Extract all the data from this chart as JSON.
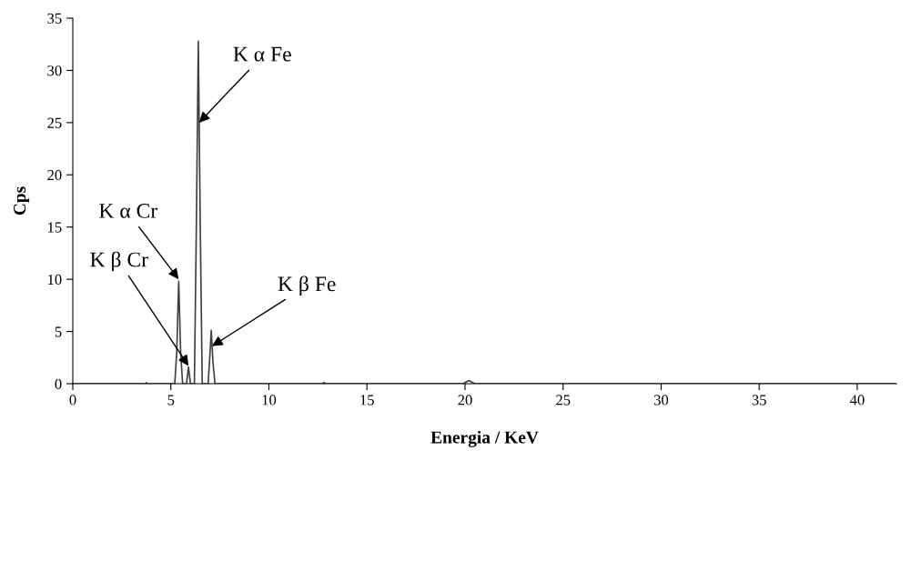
{
  "chart_data": {
    "type": "line",
    "xlabel": "Energia / KeV",
    "ylabel": "Cps",
    "x": [
      0,
      3.7,
      3.75,
      3.8,
      5.2,
      5.3,
      5.4,
      5.5,
      5.6,
      5.8,
      5.9,
      6.0,
      6.2,
      6.3,
      6.4,
      6.5,
      6.6,
      6.9,
      7.0,
      7.06,
      7.15,
      7.25,
      12.7,
      12.8,
      12.9,
      19.9,
      20.2,
      20.5,
      42
    ],
    "series": [
      {
        "color": "#404040",
        "values": [
          0,
          0,
          0.1,
          0,
          0,
          3,
          9.8,
          3,
          0,
          0,
          1.6,
          0,
          0,
          15,
          32.8,
          15,
          0,
          0,
          3,
          5.1,
          2,
          0,
          0,
          0.1,
          0,
          0,
          0.3,
          0,
          0
        ]
      }
    ],
    "xlim": [
      0,
      42
    ],
    "xticks": [
      0,
      5,
      10,
      15,
      20,
      25,
      30,
      35,
      40
    ],
    "ylim": [
      0,
      35
    ],
    "yticks": [
      0,
      5,
      10,
      15,
      20,
      25,
      30,
      35
    ],
    "grid": false,
    "marker": "none",
    "line_style": "solid",
    "annotations": [
      {
        "text": "K α Fe",
        "x": 6.44,
        "y": 25
      },
      {
        "text": "K α Cr",
        "x": 5.4,
        "y": 10
      },
      {
        "text": "K β Cr",
        "x": 5.9,
        "y": 1.7
      },
      {
        "text": "K β Fe",
        "x": 7.1,
        "y": 3.6
      }
    ]
  }
}
